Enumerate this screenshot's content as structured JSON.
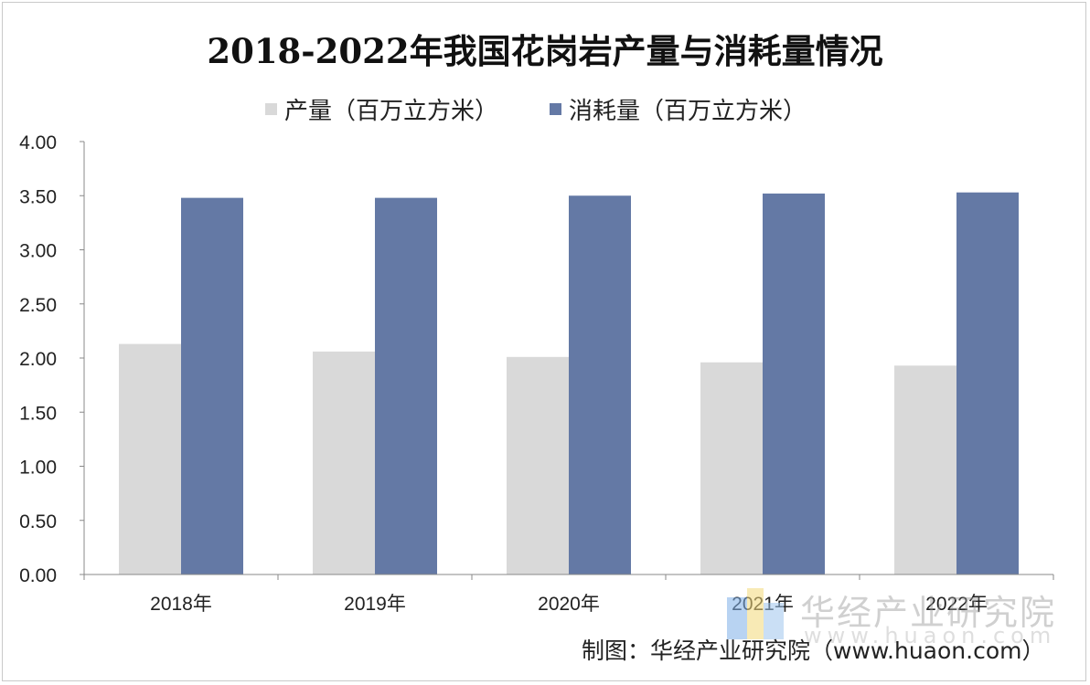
{
  "colors": {
    "production": "#d9d9d9",
    "consumption": "#6479a5",
    "axis": "#888888",
    "text": "#222222"
  },
  "chart_data": {
    "type": "bar",
    "title": "2018-2022年我国花岗岩产量与消耗量情况",
    "categories": [
      "2018年",
      "2019年",
      "2020年",
      "2021年",
      "2022年"
    ],
    "series": [
      {
        "name": "产量（百万立方米）",
        "values": [
          2.13,
          2.06,
          2.01,
          1.96,
          1.93
        ]
      },
      {
        "name": "消耗量（百万立方米）",
        "values": [
          3.48,
          3.48,
          3.5,
          3.52,
          3.53
        ]
      }
    ],
    "ylim": [
      0,
      4
    ],
    "yticks": [
      "0.00",
      "0.50",
      "1.00",
      "1.50",
      "2.00",
      "2.50",
      "3.00",
      "3.50",
      "4.00"
    ],
    "xlabel": "",
    "ylabel": "",
    "legend_position": "top",
    "grid": false
  },
  "watermark": {
    "name": "华经产业研究院",
    "url": "www.huaon.com"
  },
  "source": "制图：华经产业研究院（www.huaon.com）"
}
